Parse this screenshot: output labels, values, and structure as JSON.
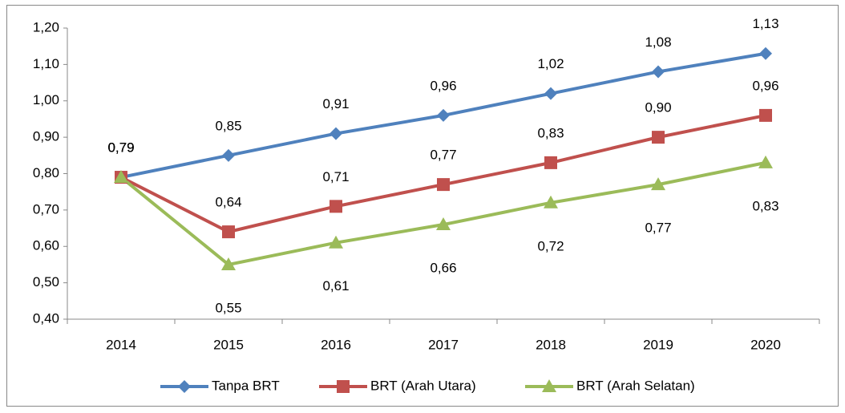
{
  "chart_data": {
    "type": "line",
    "categories": [
      "2014",
      "2015",
      "2016",
      "2017",
      "2018",
      "2019",
      "2020"
    ],
    "series": [
      {
        "name": "Tanpa BRT",
        "color": "#4f81bd",
        "marker": "diamond",
        "values": [
          0.79,
          0.85,
          0.91,
          0.96,
          1.02,
          1.08,
          1.13
        ],
        "value_labels": [
          "0,79",
          "0,85",
          "0,91",
          "0,96",
          "1,02",
          "1,08",
          "1,13"
        ]
      },
      {
        "name": "BRT (Arah Utara)",
        "color": "#c0504d",
        "marker": "square",
        "values": [
          0.79,
          0.64,
          0.71,
          0.77,
          0.83,
          0.9,
          0.96
        ],
        "value_labels": [
          "0,79",
          "0,64",
          "0,71",
          "0,77",
          "0,83",
          "0,90",
          "0,96"
        ]
      },
      {
        "name": "BRT (Arah Selatan)",
        "color": "#9bbb59",
        "marker": "triangle",
        "values": [
          0.79,
          0.55,
          0.61,
          0.66,
          0.72,
          0.77,
          0.83
        ],
        "value_labels": [
          "0,79",
          "0,55",
          "0,61",
          "0,66",
          "0,72",
          "0,77",
          "0,83"
        ]
      }
    ],
    "ylim": [
      0.4,
      1.2
    ],
    "yticks": [
      {
        "value": 0.4,
        "label": "0,40"
      },
      {
        "value": 0.5,
        "label": "0,50"
      },
      {
        "value": 0.6,
        "label": "0,60"
      },
      {
        "value": 0.7,
        "label": "0,70"
      },
      {
        "value": 0.8,
        "label": "0,80"
      },
      {
        "value": 0.9,
        "label": "0,90"
      },
      {
        "value": 1.0,
        "label": "1,00"
      },
      {
        "value": 1.1,
        "label": "1,10"
      },
      {
        "value": 1.2,
        "label": "1,20"
      }
    ],
    "legend": "bottom"
  }
}
